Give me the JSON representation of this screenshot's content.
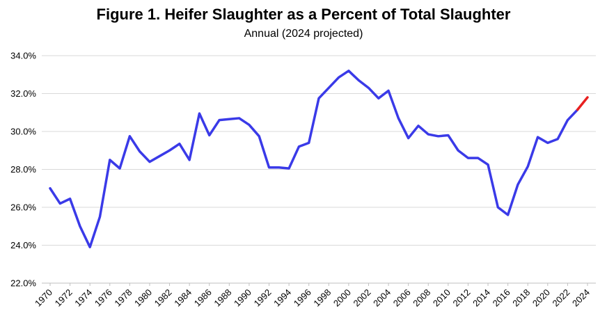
{
  "title": "Figure 1.  Heifer Slaughter as a Percent of Total Slaughter",
  "subtitle": "Annual (2024 projected)",
  "chart_data": {
    "type": "line",
    "title": "Figure 1.  Heifer Slaughter as a Percent of Total Slaughter",
    "subtitle": "Annual (2024 projected)",
    "xlabel": "",
    "ylabel": "",
    "ylim": [
      22.0,
      34.0
    ],
    "yticks": [
      "22.0%",
      "24.0%",
      "26.0%",
      "28.0%",
      "30.0%",
      "32.0%",
      "34.0%"
    ],
    "yticks_values": [
      22,
      24,
      26,
      28,
      30,
      32,
      34
    ],
    "xticks": [
      "1970",
      "1972",
      "1974",
      "1976",
      "1978",
      "1980",
      "1982",
      "1984",
      "1986",
      "1988",
      "1990",
      "1992",
      "1994",
      "1996",
      "1998",
      "2000",
      "2002",
      "2004",
      "2006",
      "2008",
      "2010",
      "2012",
      "2014",
      "2016",
      "2018",
      "2020",
      "2022",
      "2024"
    ],
    "grid": true,
    "legend": "none",
    "x": [
      1970,
      1971,
      1972,
      1973,
      1974,
      1975,
      1976,
      1977,
      1978,
      1979,
      1980,
      1981,
      1982,
      1983,
      1984,
      1985,
      1986,
      1987,
      1988,
      1989,
      1990,
      1991,
      1992,
      1993,
      1994,
      1995,
      1996,
      1997,
      1998,
      1999,
      2000,
      2001,
      2002,
      2003,
      2004,
      2005,
      2006,
      2007,
      2008,
      2009,
      2010,
      2011,
      2012,
      2013,
      2014,
      2015,
      2016,
      2017,
      2018,
      2019,
      2020,
      2021,
      2022,
      2023,
      2024
    ],
    "series": [
      {
        "color": "#3a3ae8",
        "values": [
          27.0,
          26.2,
          26.45,
          25.0,
          23.9,
          25.5,
          28.5,
          28.05,
          29.75,
          28.95,
          28.4,
          28.7,
          29.0,
          29.35,
          28.5,
          30.95,
          29.8,
          30.6,
          30.65,
          30.7,
          30.35,
          29.75,
          28.1,
          28.1,
          28.05,
          29.2,
          29.4,
          31.75,
          32.3,
          32.85,
          33.2,
          32.7,
          32.3,
          31.75,
          32.15,
          30.7,
          29.65,
          30.3,
          29.85,
          29.75,
          29.8,
          29.0,
          28.6,
          28.6,
          28.25,
          26.0,
          25.6,
          27.2,
          28.15,
          29.7,
          29.4,
          29.6,
          30.6,
          31.15,
          null
        ]
      },
      {
        "color": "#e82020",
        "values": [
          null,
          null,
          null,
          null,
          null,
          null,
          null,
          null,
          null,
          null,
          null,
          null,
          null,
          null,
          null,
          null,
          null,
          null,
          null,
          null,
          null,
          null,
          null,
          null,
          null,
          null,
          null,
          null,
          null,
          null,
          null,
          null,
          null,
          null,
          null,
          null,
          null,
          null,
          null,
          null,
          null,
          null,
          null,
          null,
          null,
          null,
          null,
          null,
          null,
          null,
          null,
          null,
          null,
          31.15,
          31.8
        ]
      }
    ]
  }
}
